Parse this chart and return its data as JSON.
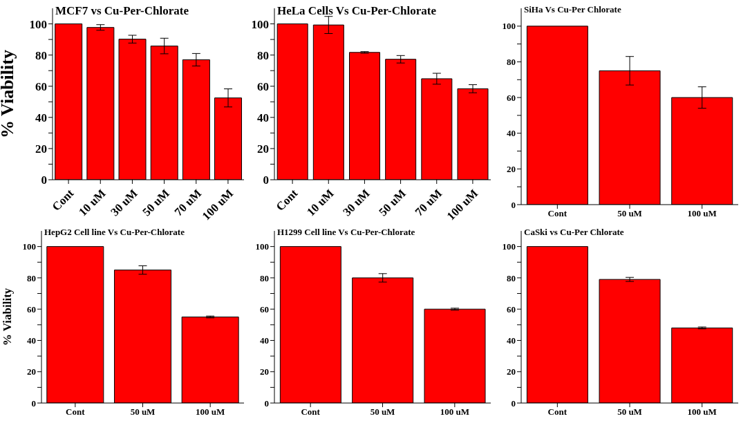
{
  "chart_data": [
    {
      "type": "bar",
      "title": "MCF7 vs Cu-Per-Chlorate",
      "ylabel": "% Viability",
      "categories": [
        "Cont",
        "10 uM",
        "30 uM",
        "50 uM",
        "70 uM",
        "100 uM"
      ],
      "values": [
        100,
        97.7,
        90.2,
        85.8,
        77,
        52.5
      ],
      "errors": [
        null,
        1.8,
        2.5,
        5,
        4,
        5.8
      ],
      "color": "#ff0000",
      "ylim": [
        0,
        110
      ],
      "yticks": [
        0,
        {
          "value": 10,
          "label": null
        },
        20,
        {
          "value": 30,
          "label": null
        },
        40,
        {
          "value": 50,
          "label": null
        },
        60,
        {
          "value": 70,
          "label": null
        },
        80,
        {
          "value": 90,
          "label": null
        },
        100
      ],
      "grid": false,
      "legend": false
    },
    {
      "type": "bar",
      "title": "HeLa Cells Vs Cu-Per-Chlorate",
      "categories": [
        "Cont",
        "10 uM",
        "30 uM",
        "50 uM",
        "70 uM",
        "100 uM"
      ],
      "values": [
        100,
        99.3,
        81.7,
        77.3,
        64.8,
        58.4
      ],
      "errors": [
        null,
        5.5,
        0.5,
        2.4,
        3.5,
        2.6
      ],
      "color": "#ff0000",
      "ylim": [
        0,
        110
      ],
      "yticks": [
        0,
        {
          "value": 10,
          "label": null
        },
        20,
        {
          "value": 30,
          "label": null
        },
        40,
        {
          "value": 50,
          "label": null
        },
        60,
        {
          "value": 70,
          "label": null
        },
        80,
        {
          "value": 90,
          "label": null
        },
        100
      ],
      "grid": false,
      "legend": false
    },
    {
      "type": "bar",
      "title": "SiHa Vs Cu-Per Chlorate",
      "categories": [
        "Cont",
        "50 uM",
        "100 uM"
      ],
      "values": [
        100,
        75,
        60
      ],
      "errors": [
        null,
        8,
        6
      ],
      "color": "#ff0000",
      "ylim": [
        0,
        110
      ],
      "yticks": [
        0,
        {
          "value": 10,
          "label": null
        },
        20,
        {
          "value": 30,
          "label": null
        },
        40,
        {
          "value": 50,
          "label": null
        },
        60,
        {
          "value": 70,
          "label": null
        },
        80,
        {
          "value": 90,
          "label": null
        },
        100
      ],
      "grid": false,
      "legend": false
    },
    {
      "type": "bar",
      "title": "HepG2 Cell line Vs Cu-Per-Chlorate",
      "ylabel": "% Viability",
      "categories": [
        "Cont",
        "50 uM",
        "100 uM"
      ],
      "values": [
        100,
        85,
        55
      ],
      "errors": [
        null,
        2.7,
        0.6
      ],
      "color": "#ff0000",
      "ylim": [
        0,
        110
      ],
      "yticks": [
        0,
        {
          "value": 10,
          "label": null
        },
        20,
        {
          "value": 30,
          "label": null
        },
        40,
        {
          "value": 50,
          "label": null
        },
        60,
        {
          "value": 70,
          "label": null
        },
        80,
        {
          "value": 90,
          "label": null
        },
        100
      ],
      "grid": false,
      "legend": false
    },
    {
      "type": "bar",
      "title": "H1299 Cell line Vs Cu-Per-Chlorate",
      "categories": [
        "Cont",
        "50 uM",
        "100 uM"
      ],
      "values": [
        100,
        80,
        60
      ],
      "errors": [
        null,
        2.7,
        0.6
      ],
      "color": "#ff0000",
      "ylim": [
        0,
        110
      ],
      "yticks": [
        0,
        {
          "value": 10,
          "label": null
        },
        20,
        {
          "value": 30,
          "label": null
        },
        40,
        {
          "value": 50,
          "label": null
        },
        60,
        {
          "value": 70,
          "label": null
        },
        80,
        {
          "value": 90,
          "label": null
        },
        100
      ],
      "grid": false,
      "legend": false
    },
    {
      "type": "bar",
      "title": "CaSki vs Cu-Per Chlorate",
      "categories": [
        "Cont",
        "50 uM",
        "100 uM"
      ],
      "values": [
        100,
        79,
        48
      ],
      "errors": [
        null,
        1.3,
        0.6
      ],
      "color": "#ff0000",
      "ylim": [
        0,
        110
      ],
      "yticks": [
        0,
        {
          "value": 10,
          "label": null
        },
        20,
        {
          "value": 30,
          "label": null
        },
        40,
        {
          "value": 50,
          "label": null
        },
        60,
        {
          "value": 70,
          "label": null
        },
        80,
        {
          "value": 90,
          "label": null
        },
        100
      ],
      "grid": false,
      "legend": false
    }
  ]
}
